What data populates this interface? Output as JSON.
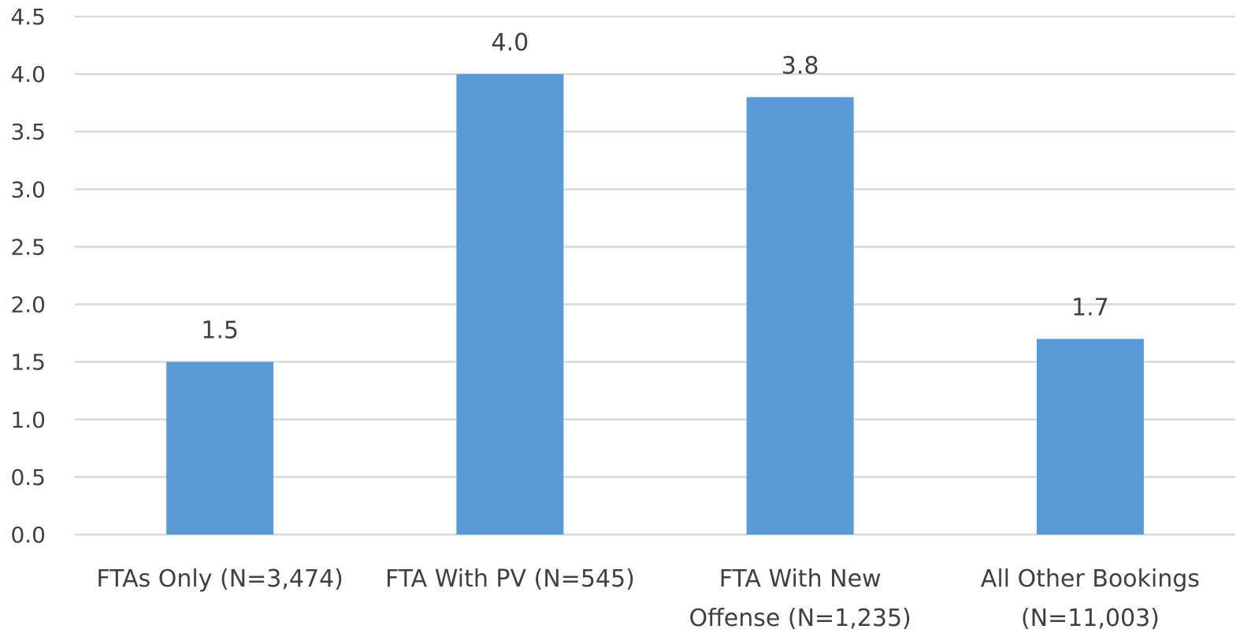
{
  "chart_data": {
    "type": "bar",
    "categories": [
      [
        "FTAs Only (N=3,474)"
      ],
      [
        "FTA With PV (N=545)"
      ],
      [
        "FTA With New",
        "Offense (N=1,235)"
      ],
      [
        "All Other Bookings",
        "(N=11,003)"
      ]
    ],
    "values": [
      1.5,
      4.0,
      3.8,
      1.7
    ],
    "value_labels": [
      "1.5",
      "4.0",
      "3.8",
      "1.7"
    ],
    "ylim": [
      0,
      4.5
    ],
    "y_ticks": [
      "0.0",
      "0.5",
      "1.0",
      "1.5",
      "2.0",
      "2.5",
      "3.0",
      "3.5",
      "4.0",
      "4.5"
    ],
    "grid": true,
    "legend": "none",
    "bar_color": "#5b9bd5",
    "title": "",
    "xlabel": "",
    "ylabel": ""
  }
}
